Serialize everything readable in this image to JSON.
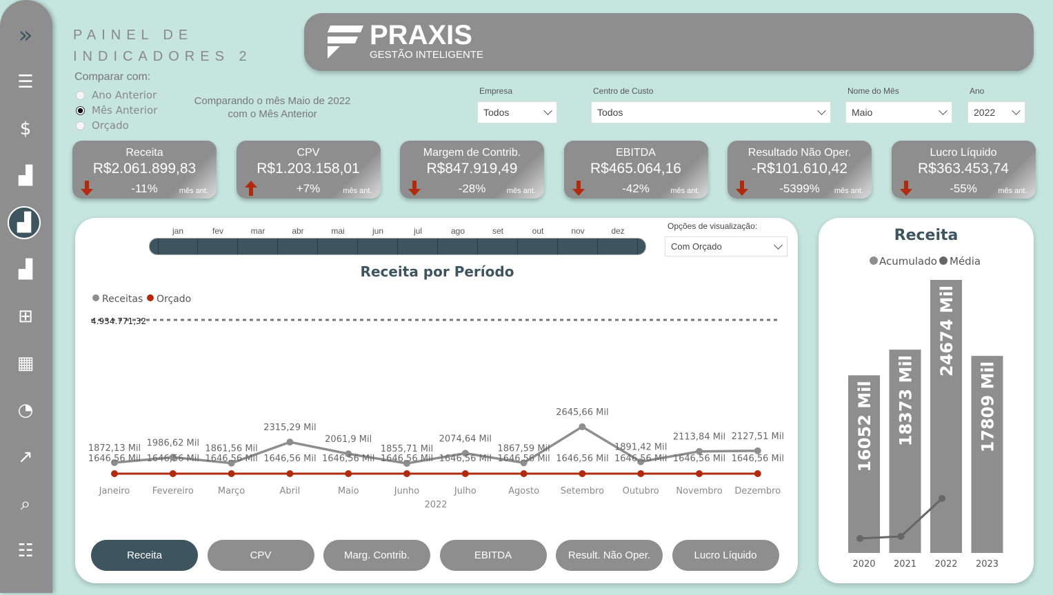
{
  "sidebar": {
    "items": [
      "expand",
      "relatorio",
      "financeiro",
      "indicadores-1",
      "indicadores-2",
      "indicadores-3",
      "calculadora",
      "tabela",
      "grafico-pizza",
      "tendencia",
      "pesquisa",
      "configuracoes"
    ],
    "active": "indicadores-2"
  },
  "header": {
    "title_line1": "PAINEL DE",
    "title_line2": "INDICADORES 2",
    "logo_text": "PRAXIS",
    "logo_sub": "GESTÃO INTELIGENTE"
  },
  "compare": {
    "label": "Comparar com:",
    "options": [
      "Ano Anterior",
      "Mês Anterior",
      "Orçado"
    ],
    "selected": "Mês Anterior",
    "description": "Comparando o mês Maio de 2022 com o Mês Anterior"
  },
  "filters": [
    {
      "label": "Empresa",
      "value": "Todos"
    },
    {
      "label": "Centro de Custo",
      "value": "Todos"
    },
    {
      "label": "Nome do Mês",
      "value": "Maio"
    },
    {
      "label": "Ano",
      "value": "2022"
    }
  ],
  "kpis": [
    {
      "title": "Receita",
      "value": "R$2.061.899,83",
      "pct": "-11%",
      "trend": "down",
      "ref": "mês ant."
    },
    {
      "title": "CPV",
      "value": "R$1.203.158,01",
      "pct": "+7%",
      "trend": "up",
      "ref": "mês ant."
    },
    {
      "title": "Margem de Contrib.",
      "value": "R$847.919,49",
      "pct": "-28%",
      "trend": "down",
      "ref": "mês ant."
    },
    {
      "title": "EBITDA",
      "value": "R$465.064,16",
      "pct": "-42%",
      "trend": "down",
      "ref": "mês ant."
    },
    {
      "title": "Resultado Não Oper.",
      "value": "-R$101.610,42",
      "pct": "-5399%",
      "trend": "down",
      "ref": "mês ant."
    },
    {
      "title": "Lucro Líquido",
      "value": "R$363.453,74",
      "pct": "-55%",
      "trend": "down",
      "ref": "mês ant."
    }
  ],
  "colors": {
    "accent": "#3e5560",
    "card": "#8e8e8e",
    "down": "#b22a0e",
    "bg": "#c5e5de",
    "orcado": "#b22a0e",
    "receita": "#8e8e8e"
  },
  "month_slicer": [
    "jan",
    "fev",
    "mar",
    "abr",
    "mai",
    "jun",
    "jul",
    "ago",
    "set",
    "out",
    "nov",
    "dez"
  ],
  "view_options": {
    "label": "Opções de visualização:",
    "value": "Com Orçado"
  },
  "chart_data": [
    {
      "type": "line",
      "title": "Receita por Período",
      "xlabel": "2022",
      "categories": [
        "Janeiro",
        "Fevereiro",
        "Março",
        "Abril",
        "Maio",
        "Junho",
        "Julho",
        "Agosto",
        "Setembro",
        "Outubro",
        "Novembro",
        "Dezembro"
      ],
      "series": [
        {
          "name": "Receitas",
          "values": [
            1872.13,
            1986.62,
            1861.56,
            2315.29,
            2061.9,
            1855.71,
            2074.64,
            1867.59,
            2645.66,
            1891.42,
            2113.84,
            2127.51
          ],
          "labels": [
            "1872,13 Mil",
            "1986,62 Mil",
            "1861,56 Mil",
            "2315,29 Mil",
            "2061,9 Mil",
            "1855,71 Mil",
            "2074,64 Mil",
            "1867,59 Mil",
            "2645,66 Mil",
            "1891,42 Mil",
            "2113,84 Mil",
            "2127,51 Mil"
          ]
        },
        {
          "name": "Orçado",
          "values": [
            1646.56,
            1646.56,
            1646.56,
            1646.56,
            1646.56,
            1646.56,
            1646.56,
            1646.56,
            1646.56,
            1646.56,
            1646.56,
            1646.56
          ],
          "labels": [
            "1646,56 Mil",
            "1646,56 Mil",
            "1646,56 Mil",
            "1646,56 Mil",
            "1646,56 Mil",
            "1646,56 Mil",
            "1646,56 Mil",
            "1646,56 Mil",
            "1646,56 Mil",
            "1646,56 Mil",
            "1646,56 Mil",
            "1646,56 Mil"
          ]
        }
      ],
      "reference_line": {
        "value": 4934771.32,
        "label": "4.934.771,32",
        "style": "dashed"
      },
      "legend": "top-left",
      "grid": false
    },
    {
      "type": "bar",
      "title": "Receita",
      "categories": [
        "2020",
        "2021",
        "2022",
        "2023"
      ],
      "series": [
        {
          "name": "Acumulado",
          "values": [
            16052,
            18373,
            24674,
            17809
          ],
          "labels": [
            "16052 Mil",
            "18373 Mil",
            "24674 Mil",
            "17809 Mil"
          ]
        },
        {
          "name": "Média",
          "values": [
            1308,
            1495,
            4922,
            null
          ]
        }
      ],
      "legend": "top-center",
      "grid": false
    }
  ],
  "buttons": [
    "Receita",
    "CPV",
    "Marg. Contrib.",
    "EBITDA",
    "Result. Não Oper.",
    "Lucro Líquido"
  ],
  "active_button": "Receita"
}
